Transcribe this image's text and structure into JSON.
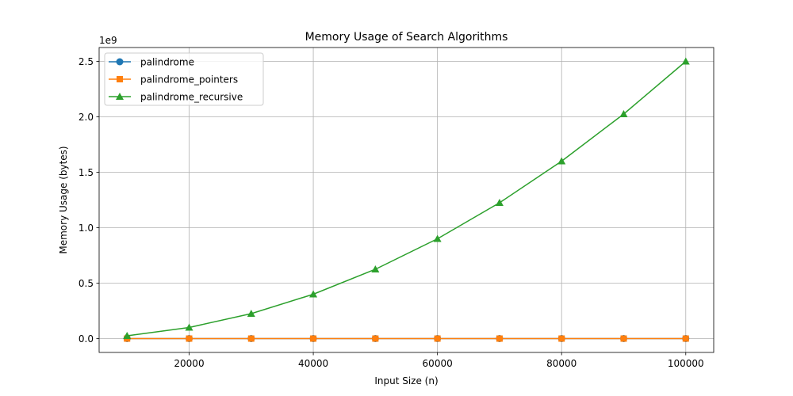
{
  "chart_data": {
    "type": "line",
    "title": "Memory Usage of Search Algorithms",
    "xlabel": "Input Size (n)",
    "ylabel": "Memory Usage (bytes)",
    "y_scale_label": "1e9",
    "x": [
      10000,
      20000,
      30000,
      40000,
      50000,
      60000,
      70000,
      80000,
      90000,
      100000
    ],
    "xlim": [
      5500,
      104500
    ],
    "ylim": [
      -0.125,
      2.625
    ],
    "y_scale": 1000000000,
    "x_ticks": [
      20000,
      40000,
      60000,
      80000,
      100000
    ],
    "x_tick_labels": [
      "20000",
      "40000",
      "60000",
      "80000",
      "100000"
    ],
    "y_ticks": [
      0.0,
      0.5,
      1.0,
      1.5,
      2.0,
      2.5
    ],
    "y_tick_labels": [
      "0.0",
      "0.5",
      "1.0",
      "1.5",
      "2.0",
      "2.5"
    ],
    "grid": true,
    "legend_position": "top-left",
    "series": [
      {
        "name": "palindrome",
        "color": "#1f77b4",
        "marker": "circle",
        "values": [
          0,
          0,
          0,
          0,
          0,
          0,
          0,
          0,
          0,
          0
        ]
      },
      {
        "name": "palindrome_pointers",
        "color": "#ff7f0e",
        "marker": "square",
        "values": [
          0,
          0,
          0,
          0,
          0,
          0,
          0,
          0,
          0,
          0
        ]
      },
      {
        "name": "palindrome_recursive",
        "color": "#2ca02c",
        "marker": "triangle",
        "values": [
          25000000,
          100000000,
          225000000,
          400000000,
          625000000,
          900000000,
          1225000000,
          1600000000,
          2025000000,
          2500000000
        ]
      }
    ]
  }
}
